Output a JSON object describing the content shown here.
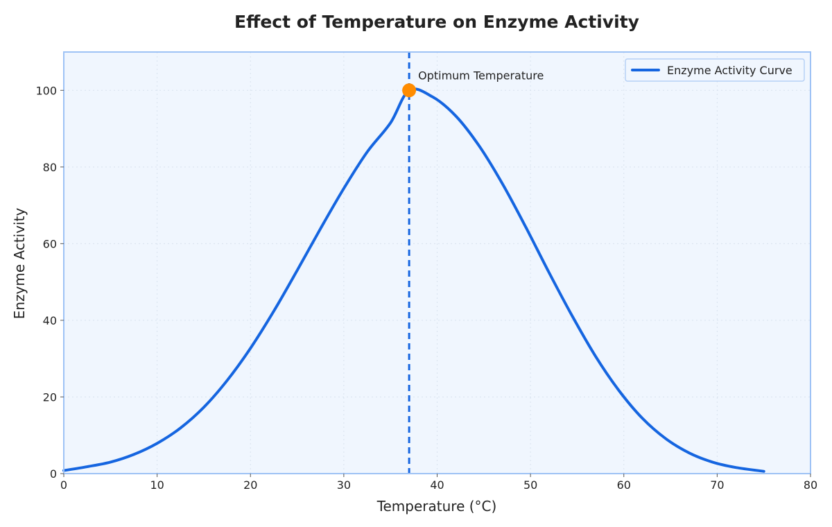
{
  "chart_data": {
    "type": "line",
    "title": "Effect of Temperature on Enzyme Activity",
    "xlabel": "Temperature (°C)",
    "ylabel": "Enzyme Activity",
    "xlim": [
      0,
      80
    ],
    "ylim": [
      0,
      110
    ],
    "xticks": [
      0,
      10,
      20,
      30,
      40,
      50,
      60,
      70,
      80
    ],
    "yticks": [
      0,
      20,
      40,
      60,
      80,
      100
    ],
    "grid": true,
    "legend_position": "top-right",
    "series": [
      {
        "name": "Enzyme Activity Curve",
        "color": "#1565e0",
        "x": [
          0,
          2.5,
          5,
          7.5,
          10,
          12.5,
          15,
          17.5,
          20,
          22.5,
          25,
          27.5,
          30,
          32.5,
          35,
          37,
          39.5,
          42,
          44.5,
          47,
          49.5,
          52,
          54.5,
          57,
          59.5,
          62,
          64.5,
          67,
          69.5,
          72,
          75
        ],
        "y": [
          0.8,
          1.8,
          3.0,
          5.0,
          7.9,
          11.9,
          17.3,
          24.3,
          32.7,
          42.4,
          53.0,
          63.9,
          74.4,
          83.9,
          91.5,
          100.0,
          98.3,
          93.3,
          85.5,
          75.6,
          64.3,
          52.4,
          41.0,
          30.5,
          21.6,
          14.4,
          9.1,
          5.4,
          3.0,
          1.6,
          0.6
        ]
      }
    ],
    "annotations": [
      {
        "text": "Optimum Temperature",
        "x": 37,
        "y": 100,
        "vertical_line": true,
        "marker_color": "#ff8c00"
      }
    ]
  },
  "colors": {
    "plot_background": "#f0f6fe",
    "plot_border": "#9ec2f5",
    "grid": "#d8e2ee",
    "line": "#1565e0",
    "marker": "#ff8c00"
  }
}
